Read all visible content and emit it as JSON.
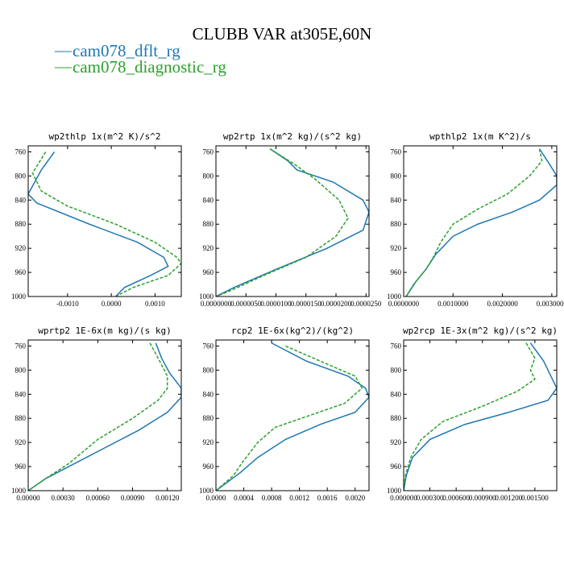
{
  "figure": {
    "title": "CLUBB VAR at305E,60N"
  },
  "legend": [
    {
      "label": "cam078_dflt_rg",
      "color": "#1f77b4"
    },
    {
      "label": "cam078_diagnostic_rg",
      "color": "#2ca02c"
    }
  ],
  "chart_data": [
    {
      "type": "line",
      "title": "wp2thlp  1x(m^2 K)/s^2",
      "xlim": [
        -0.0019,
        0.0016
      ],
      "ylim": [
        1000,
        750
      ],
      "xticks": [
        -0.001,
        0.0,
        0.001
      ],
      "xtick_labels": [
        "-0.0010",
        "0.0000",
        "0.0010"
      ],
      "yticks": [
        760,
        800,
        840,
        880,
        920,
        960,
        1000
      ],
      "ytick_labels": [
        "760",
        "800",
        "840",
        "880",
        "920",
        "960",
        "1000"
      ],
      "series": [
        {
          "name": "cam078_dflt_rg",
          "color": "#1f77b4",
          "dash": "",
          "points": [
            [
              -0.0013,
              760
            ],
            [
              -0.0016,
              790
            ],
            [
              -0.0019,
              830
            ],
            [
              -0.0017,
              845
            ],
            [
              -0.0005,
              880
            ],
            [
              0.0006,
              910
            ],
            [
              0.0012,
              935
            ],
            [
              0.0013,
              950
            ],
            [
              0.0009,
              965
            ],
            [
              0.0003,
              985
            ],
            [
              0.0001,
              1000
            ]
          ]
        },
        {
          "name": "cam078_diagnostic_rg",
          "color": "#2ca02c",
          "dash": "4,2",
          "points": [
            [
              -0.0015,
              760
            ],
            [
              -0.0018,
              795
            ],
            [
              -0.0016,
              825
            ],
            [
              -0.001,
              850
            ],
            [
              0.0001,
              880
            ],
            [
              0.001,
              910
            ],
            [
              0.0015,
              935
            ],
            [
              0.0016,
              945
            ],
            [
              0.0013,
              965
            ],
            [
              0.0005,
              985
            ],
            [
              0.0001,
              1000
            ]
          ]
        }
      ]
    },
    {
      "type": "line",
      "title": "wp2rtp  1x(m^2 kg)/(s^2 kg)",
      "xlim": [
        0.0,
        2.55e-05
      ],
      "ylim": [
        1000,
        750
      ],
      "xticks": [
        0.0,
        5e-06,
        1e-05,
        1.5e-05,
        2e-05,
        2.5e-05
      ],
      "xtick_labels": [
        "0.0000000",
        "0.0000050",
        "0.0000100",
        "0.0000150",
        "0.0000200",
        "0.0000250"
      ],
      "yticks": [
        760,
        800,
        840,
        880,
        920,
        960,
        1000
      ],
      "ytick_labels": [
        "760",
        "800",
        "840",
        "880",
        "920",
        "960",
        "1000"
      ],
      "series": [
        {
          "name": "cam078_dflt_rg",
          "color": "#1f77b4",
          "dash": "",
          "points": [
            [
              9e-06,
              755
            ],
            [
              1.2e-05,
              775
            ],
            [
              1.35e-05,
              790
            ],
            [
              1.95e-05,
              810
            ],
            [
              2.45e-05,
              840
            ],
            [
              2.55e-05,
              860
            ],
            [
              2.45e-05,
              890
            ],
            [
              1.85e-05,
              920
            ],
            [
              1e-05,
              955
            ],
            [
              3e-06,
              985
            ],
            [
              0.0,
              1000
            ]
          ]
        },
        {
          "name": "cam078_diagnostic_rg",
          "color": "#2ca02c",
          "dash": "4,2",
          "points": [
            [
              9e-06,
              755
            ],
            [
              1.3e-05,
              780
            ],
            [
              1.65e-05,
              805
            ],
            [
              2.05e-05,
              840
            ],
            [
              2.2e-05,
              870
            ],
            [
              2e-05,
              900
            ],
            [
              1.5e-05,
              935
            ],
            [
              8e-06,
              965
            ],
            [
              2.5e-06,
              990
            ],
            [
              0.0,
              1000
            ]
          ]
        }
      ]
    },
    {
      "type": "line",
      "title": "wpthlp2  1x(m K^2)/s",
      "xlim": [
        0.0,
        0.0031
      ],
      "ylim": [
        1000,
        750
      ],
      "xticks": [
        0.0,
        0.001,
        0.002,
        0.003
      ],
      "xtick_labels": [
        "0.0000000",
        "0.0010000",
        "0.0020000",
        "0.0030000"
      ],
      "yticks": [
        760,
        800,
        840,
        880,
        920,
        960,
        1000
      ],
      "ytick_labels": [
        "760",
        "800",
        "840",
        "880",
        "920",
        "960",
        "1000"
      ],
      "series": [
        {
          "name": "cam078_dflt_rg",
          "color": "#1f77b4",
          "dash": "",
          "points": [
            [
              0.00275,
              755
            ],
            [
              0.00295,
              780
            ],
            [
              0.0031,
              800
            ],
            [
              0.0031,
              815
            ],
            [
              0.00275,
              840
            ],
            [
              0.0022,
              860
            ],
            [
              0.0015,
              880
            ],
            [
              0.001,
              900
            ],
            [
              0.00065,
              930
            ],
            [
              0.00045,
              955
            ],
            [
              0.00025,
              975
            ],
            [
              5e-05,
              1000
            ]
          ]
        },
        {
          "name": "cam078_diagnostic_rg",
          "color": "#2ca02c",
          "dash": "4,2",
          "points": [
            [
              0.00275,
              755
            ],
            [
              0.0028,
              775
            ],
            [
              0.00255,
              800
            ],
            [
              0.0021,
              830
            ],
            [
              0.0015,
              855
            ],
            [
              0.001,
              880
            ],
            [
              0.00075,
              910
            ],
            [
              0.0006,
              935
            ],
            [
              0.00045,
              955
            ],
            [
              0.0002,
              980
            ],
            [
              5e-05,
              1000
            ]
          ]
        }
      ]
    },
    {
      "type": "line",
      "title": "wprtp2  1E-6x(m kg)/(s kg)",
      "xlim": [
        0.0,
        0.00132
      ],
      "ylim": [
        1000,
        750
      ],
      "xticks": [
        0.0,
        0.0003,
        0.0006,
        0.0009,
        0.0012
      ],
      "xtick_labels": [
        "0.00000",
        "0.00030",
        "0.00060",
        "0.00090",
        "0.00120"
      ],
      "yticks": [
        760,
        800,
        840,
        880,
        920,
        960,
        1000
      ],
      "ytick_labels": [
        "760",
        "800",
        "840",
        "880",
        "920",
        "960",
        "1000"
      ],
      "series": [
        {
          "name": "cam078_dflt_rg",
          "color": "#1f77b4",
          "dash": "",
          "points": [
            [
              0.0011,
              755
            ],
            [
              0.00115,
              780
            ],
            [
              0.00122,
              805
            ],
            [
              0.00132,
              830
            ],
            [
              0.00132,
              845
            ],
            [
              0.0012,
              870
            ],
            [
              0.00095,
              900
            ],
            [
              0.00065,
              930
            ],
            [
              0.00035,
              960
            ],
            [
              0.00015,
              980
            ],
            [
              0.0,
              1000
            ]
          ]
        },
        {
          "name": "cam078_diagnostic_rg",
          "color": "#2ca02c",
          "dash": "4,2",
          "points": [
            [
              0.00105,
              755
            ],
            [
              0.00112,
              780
            ],
            [
              0.0012,
              810
            ],
            [
              0.0012,
              830
            ],
            [
              0.00112,
              850
            ],
            [
              0.0009,
              880
            ],
            [
              0.0006,
              915
            ],
            [
              0.00035,
              955
            ],
            [
              0.00015,
              980
            ],
            [
              0.0,
              1000
            ]
          ]
        }
      ]
    },
    {
      "type": "line",
      "title": "rcp2  1E-6x(kg^2)/(kg^2)",
      "xlim": [
        0.0,
        0.0022
      ],
      "ylim": [
        1000,
        750
      ],
      "xticks": [
        0.0,
        0.0004,
        0.0008,
        0.0012,
        0.0016,
        0.002
      ],
      "xtick_labels": [
        "0.0000",
        "0.0004",
        "0.0008",
        "0.0012",
        "0.0016",
        "0.0020"
      ],
      "yticks": [
        760,
        800,
        840,
        880,
        920,
        960,
        1000
      ],
      "ytick_labels": [
        "760",
        "800",
        "840",
        "880",
        "920",
        "960",
        "1000"
      ],
      "series": [
        {
          "name": "cam078_dflt_rg",
          "color": "#1f77b4",
          "dash": "",
          "points": [
            [
              0.0008,
              755
            ],
            [
              0.0013,
              785
            ],
            [
              0.0019,
              810
            ],
            [
              0.00215,
              830
            ],
            [
              0.0022,
              845
            ],
            [
              0.002,
              870
            ],
            [
              0.0015,
              890
            ],
            [
              0.001,
              915
            ],
            [
              0.0006,
              945
            ],
            [
              0.00035,
              970
            ],
            [
              0.0,
              1000
            ]
          ]
        },
        {
          "name": "cam078_diagnostic_rg",
          "color": "#2ca02c",
          "dash": "4,2",
          "points": [
            [
              0.001,
              760
            ],
            [
              0.0015,
              785
            ],
            [
              0.002,
              810
            ],
            [
              0.0021,
              830
            ],
            [
              0.00185,
              855
            ],
            [
              0.00135,
              875
            ],
            [
              0.00085,
              895
            ],
            [
              0.0006,
              920
            ],
            [
              0.0004,
              950
            ],
            [
              0.00025,
              975
            ],
            [
              0.0,
              1000
            ]
          ]
        }
      ]
    },
    {
      "type": "line",
      "title": "wp2rcp  1E-3x(m^2 kg)/(s^2 kg)",
      "xlim": [
        0.0,
        0.00175
      ],
      "ylim": [
        1000,
        750
      ],
      "xticks": [
        0.0,
        0.0003,
        0.0006,
        0.0009,
        0.0012,
        0.0015
      ],
      "xtick_labels": [
        "0.000000",
        "0.000300",
        "0.000600",
        "0.000900",
        "0.001200",
        "0.001500"
      ],
      "yticks": [
        760,
        800,
        840,
        880,
        920,
        960,
        1000
      ],
      "ytick_labels": [
        "760",
        "800",
        "840",
        "880",
        "920",
        "960",
        "1000"
      ],
      "series": [
        {
          "name": "cam078_dflt_rg",
          "color": "#1f77b4",
          "dash": "",
          "points": [
            [
              0.00145,
              755
            ],
            [
              0.0016,
              785
            ],
            [
              0.00175,
              830
            ],
            [
              0.00165,
              850
            ],
            [
              0.0012,
              870
            ],
            [
              0.0007,
              890
            ],
            [
              0.0003,
              915
            ],
            [
              0.0001,
              945
            ],
            [
              3e-05,
              975
            ],
            [
              0.0,
              1000
            ]
          ]
        },
        {
          "name": "cam078_diagnostic_rg",
          "color": "#2ca02c",
          "dash": "4,2",
          "points": [
            [
              0.0014,
              755
            ],
            [
              0.0015,
              780
            ],
            [
              0.00145,
              800
            ],
            [
              0.0015,
              815
            ],
            [
              0.0013,
              835
            ],
            [
              0.0009,
              860
            ],
            [
              0.00045,
              885
            ],
            [
              0.0002,
              915
            ],
            [
              8e-05,
              945
            ],
            [
              2e-05,
              975
            ],
            [
              0.0,
              1000
            ]
          ]
        }
      ]
    }
  ]
}
